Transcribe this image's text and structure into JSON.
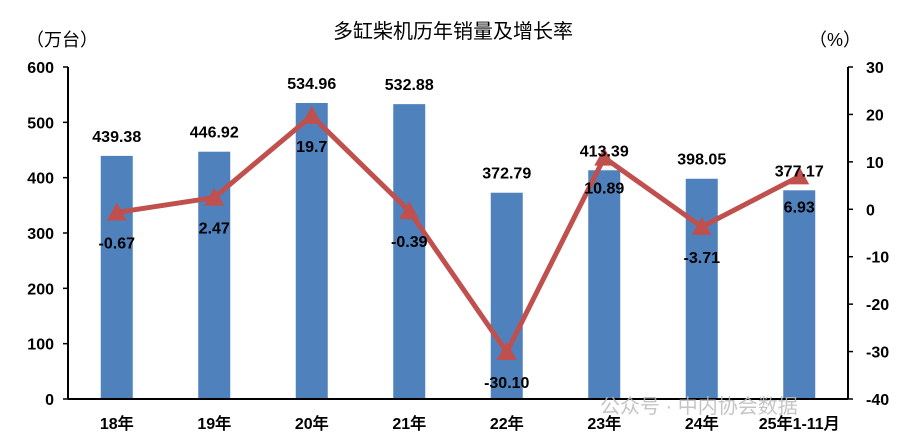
{
  "chart_data": {
    "type": "bar+line",
    "title": "多缸柴机历年销量及增长率",
    "ylabel_left": "（万台）",
    "ylabel_right": "（%）",
    "categories": [
      "18年",
      "19年",
      "20年",
      "21年",
      "22年",
      "23年",
      "24年",
      "25年1-11月"
    ],
    "series": [
      {
        "type": "bar",
        "axis": "left",
        "values": [
          439.38,
          446.92,
          534.96,
          532.88,
          372.79,
          413.39,
          398.05,
          377.17
        ],
        "labels": [
          "439.38",
          "446.92",
          "534.96",
          "532.88",
          "372.79",
          "413.39",
          "398.05",
          "377.17"
        ]
      },
      {
        "type": "line",
        "axis": "right",
        "values": [
          -0.67,
          2.47,
          19.7,
          -0.39,
          -30.1,
          10.89,
          -3.71,
          6.93
        ],
        "labels": [
          "-0.67",
          "2.47",
          "19.7",
          "-0.39",
          "-30.10",
          "10.89",
          "-3.71",
          "6.93"
        ],
        "marker": "triangle"
      }
    ],
    "ylim_left": [
      0,
      600
    ],
    "yticks_left": [
      "0",
      "100",
      "200",
      "300",
      "400",
      "500",
      "600"
    ],
    "ylim_right": [
      -40,
      30
    ],
    "yticks_right": [
      "-40",
      "-30",
      "-20",
      "-10",
      "0",
      "10",
      "20",
      "30"
    ],
    "grid": false,
    "colors": {
      "bar": "#4F81BD",
      "line": "#C0504D"
    }
  },
  "watermark": "公众号 · 中内协会数据"
}
